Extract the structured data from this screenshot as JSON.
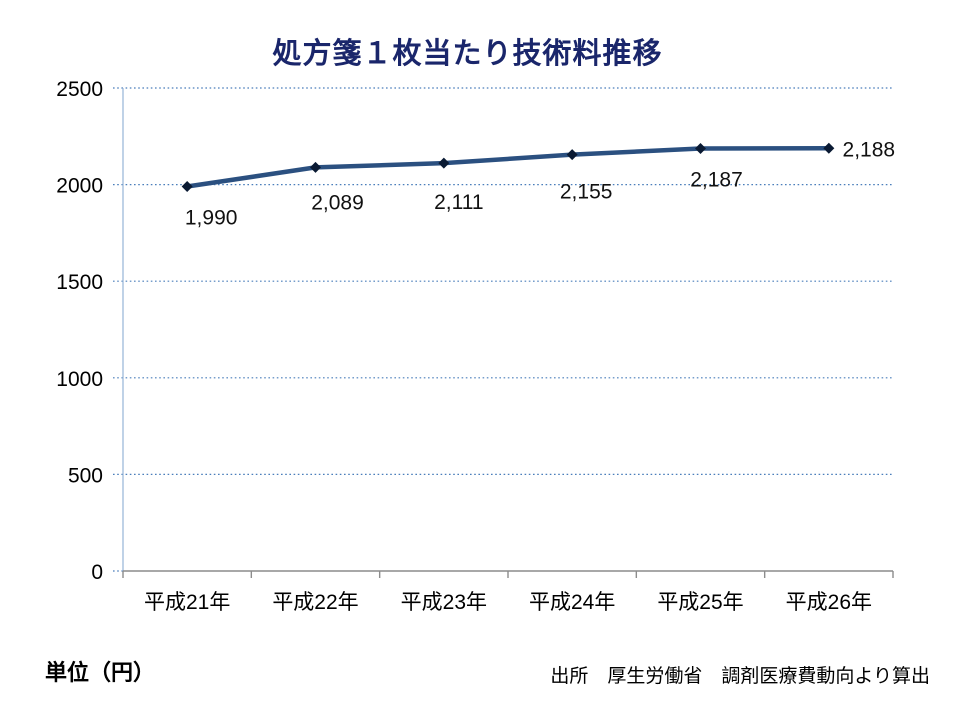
{
  "chart": {
    "title": "処方箋１枚当たり技術料推移"
  },
  "chart_data": {
    "type": "line",
    "title": "処方箋１枚当たり技術料推移",
    "categories": [
      "平成21年",
      "平成22年",
      "平成23年",
      "平成24年",
      "平成25年",
      "平成26年"
    ],
    "values": [
      1990,
      2089,
      2111,
      2155,
      2187,
      2188
    ],
    "data_labels": [
      "1,990",
      "2,089",
      "2,111",
      "2,155",
      "2,187",
      "2,188"
    ],
    "xlabel": "",
    "ylabel": "",
    "ylim": [
      0,
      2500
    ],
    "ytick_interval": 500,
    "ytick_labels": [
      "0",
      "500",
      "1000",
      "1500",
      "2000",
      "2500"
    ],
    "grid": "horizontal-dotted",
    "legend": "none",
    "marker": "diamond"
  },
  "colors": {
    "title": "#1A266B",
    "series_line": "#2B5080",
    "marker": "#0A1A33",
    "gridline": "#4A7EBB",
    "value_axis": "#95B3D7",
    "category_axis": "#8C8C8C"
  },
  "footer": {
    "unit": "単位（円）",
    "source": "出所　厚生労働省　調剤医療費動向より算出"
  }
}
